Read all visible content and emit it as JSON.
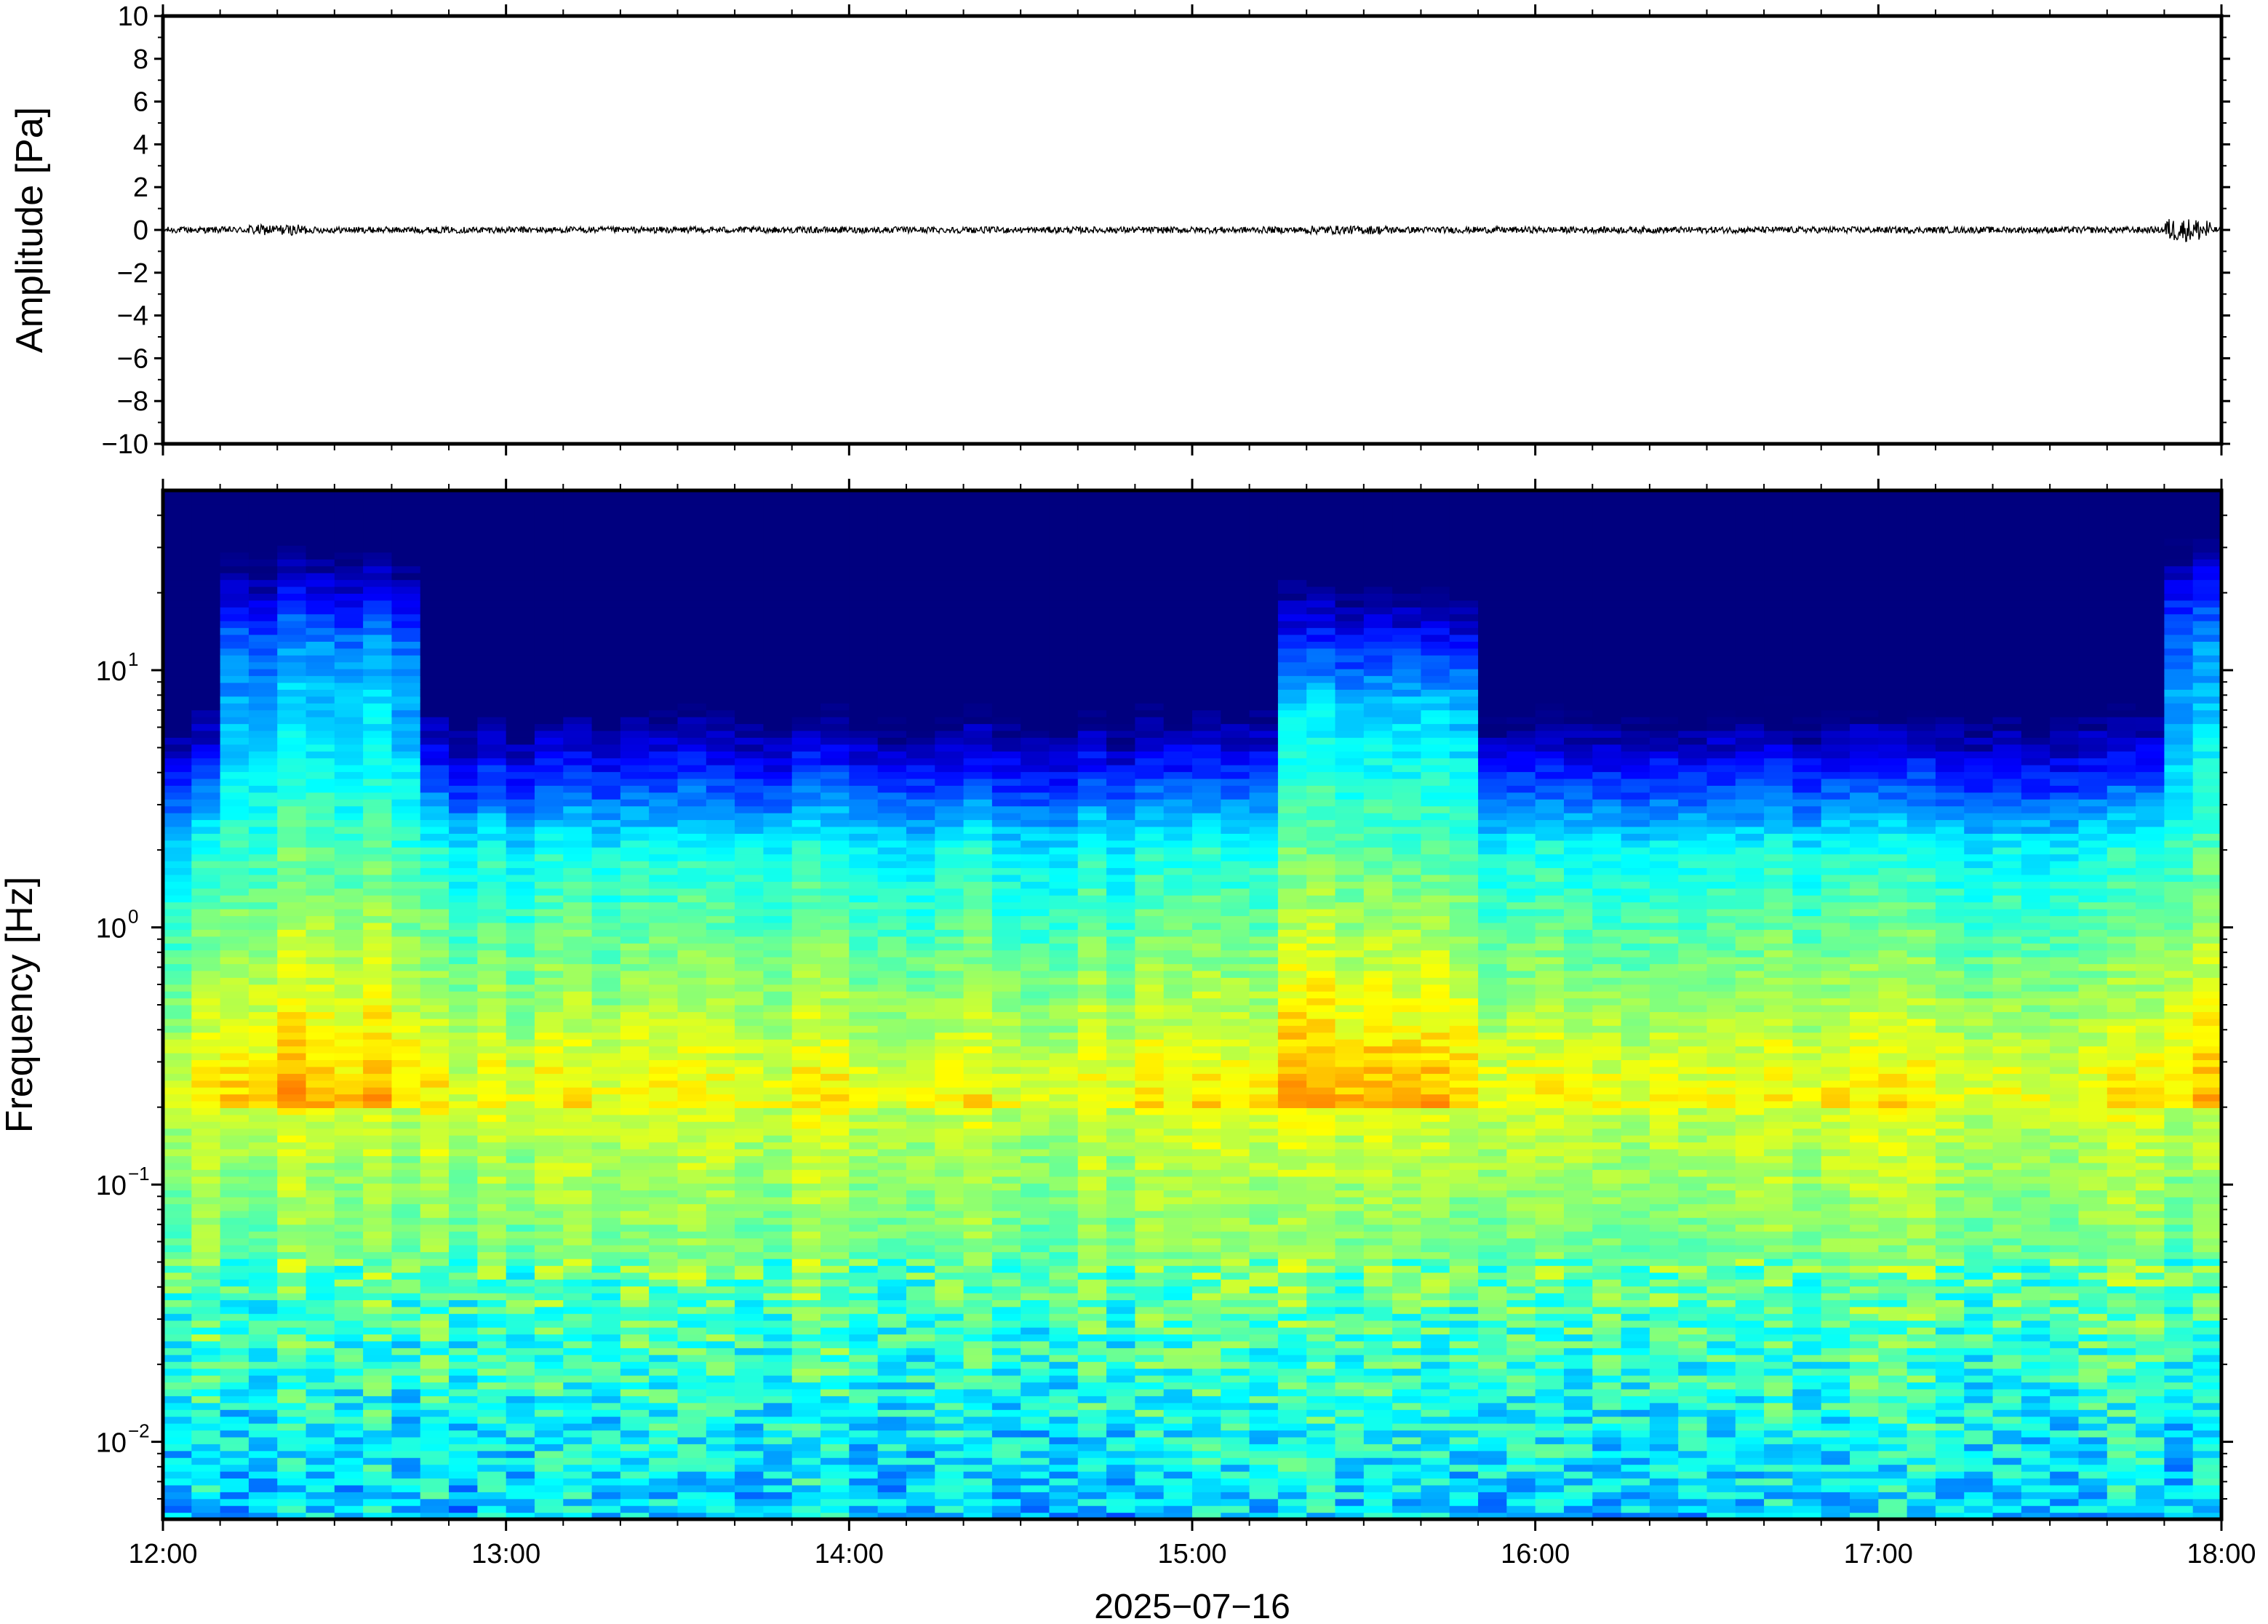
{
  "chart_data": [
    {
      "type": "line",
      "panel": "waveform",
      "ylabel": "Amplitude [Pa]",
      "ylim": [
        -10,
        10
      ],
      "yticks": [
        10,
        8,
        6,
        4,
        2,
        0,
        -2,
        -4,
        -6,
        -8,
        -10
      ],
      "ytick_labels": [
        "10",
        "8",
        "6",
        "4",
        "2",
        "0",
        "−2",
        "−4",
        "−6",
        "−8",
        "−10"
      ],
      "xlim": [
        "12:00",
        "18:00"
      ],
      "series": [
        {
          "color": "#000000",
          "baseline": 0,
          "noise_amplitude": 0.15,
          "bursts": [
            {
              "start": "12:15",
              "end": "12:25",
              "amplitude": 0.25
            },
            {
              "start": "15:20",
              "end": "15:35",
              "amplitude": 0.2
            },
            {
              "start": "17:50",
              "end": "17:58",
              "amplitude": 0.55
            }
          ]
        }
      ],
      "grid": false
    },
    {
      "type": "heatmap",
      "panel": "spectrogram",
      "ylabel": "Frequency [Hz]",
      "yscale": "log",
      "ylim": [
        0.005,
        50
      ],
      "yticks": [
        {
          "value": 10,
          "base": "10",
          "exp": "1"
        },
        {
          "value": 1,
          "base": "10",
          "exp": "0"
        },
        {
          "value": 0.1,
          "base": "10",
          "exp": "−1"
        },
        {
          "value": 0.01,
          "base": "10",
          "exp": "−2"
        }
      ],
      "xlabel": "2025−07−16",
      "xlim": [
        "12:00",
        "18:00"
      ],
      "xticks": [
        "12:00",
        "13:00",
        "14:00",
        "15:00",
        "16:00",
        "17:00",
        "18:00"
      ],
      "colormap": "jet",
      "colormap_stops": [
        "#00007f",
        "#0000ff",
        "#007fff",
        "#00ffff",
        "#7fff7f",
        "#ffff00",
        "#ff7f00",
        "#ff0000"
      ],
      "peak_band_hz": 0.2,
      "high_energy_intervals": [
        {
          "start": "12:12",
          "end": "12:45",
          "top_hz": 25
        },
        {
          "start": "15:15",
          "end": "15:50",
          "top_hz": 15
        },
        {
          "start": "17:50",
          "end": "18:00",
          "top_hz": 30
        }
      ],
      "grid": false
    }
  ]
}
